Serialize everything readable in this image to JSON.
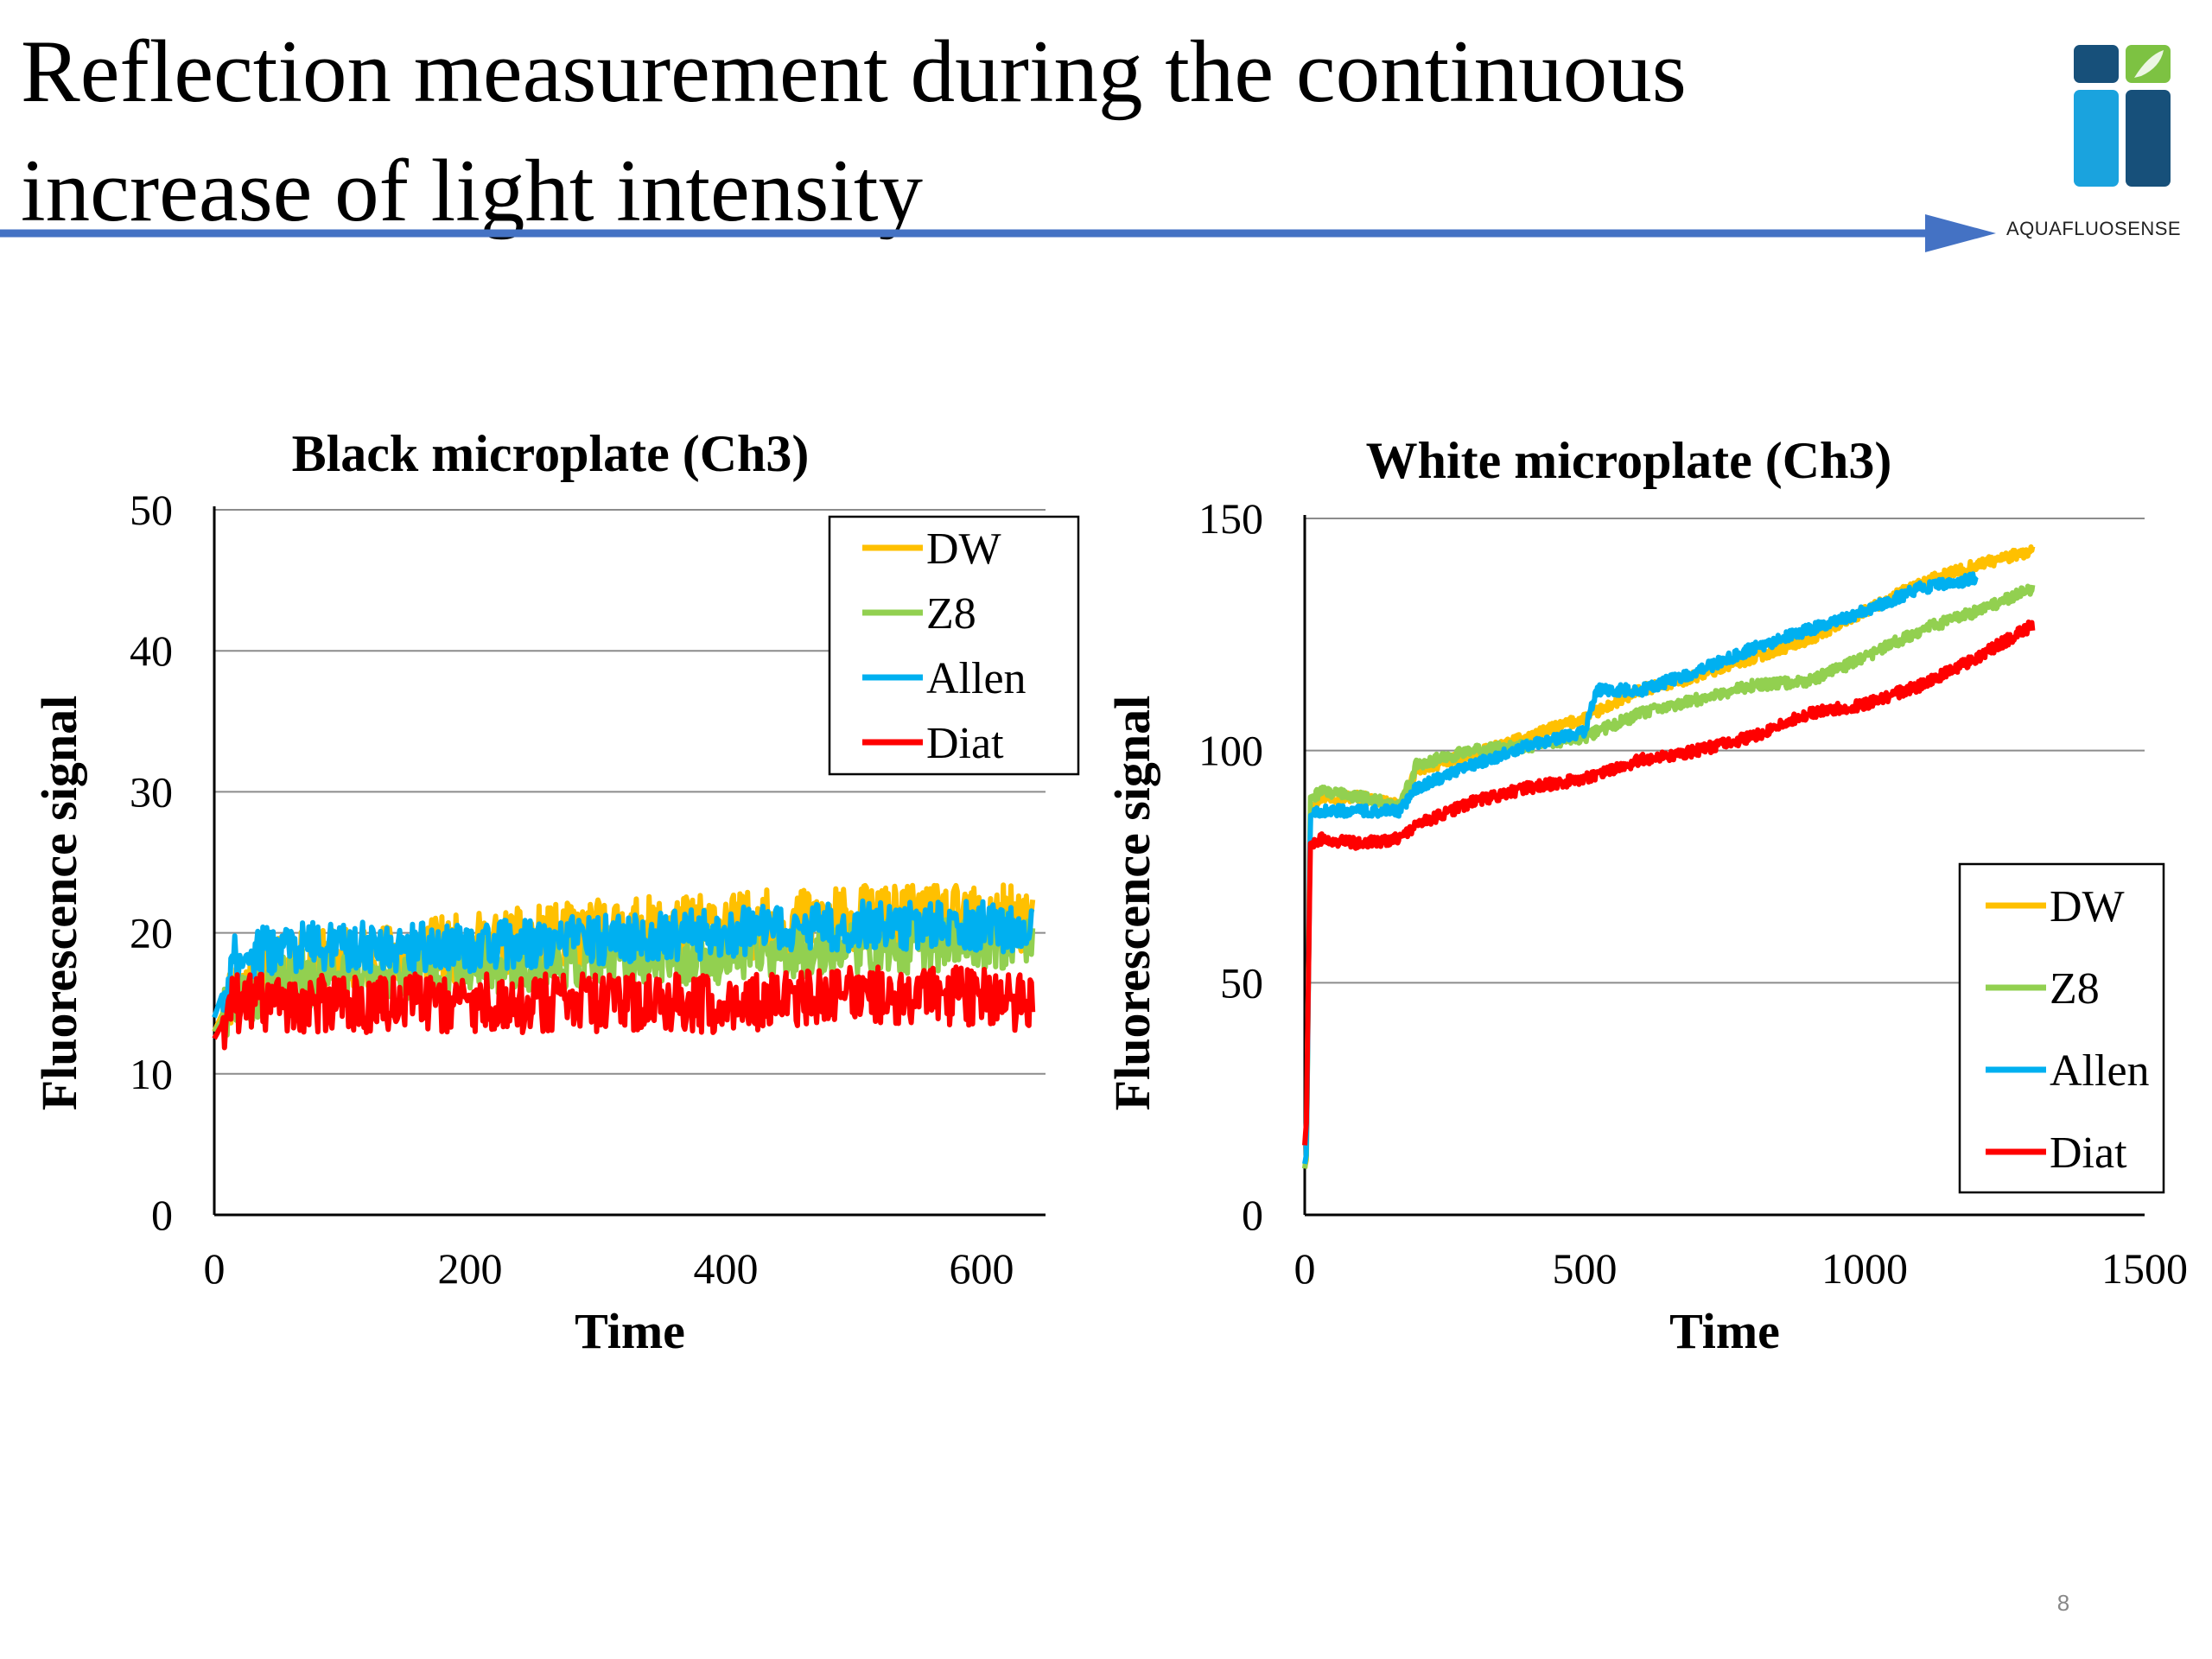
{
  "slide": {
    "title_lines": [
      "Reflection measurement during the continuous",
      "increase of light intensity"
    ],
    "logo_text": "AQUAFLUOSENSE",
    "page_number": "8",
    "colors": {
      "arrow": "#4472C4",
      "logo_dark": "#17507A",
      "logo_light": "#1AA3DE",
      "logo_green": "#7DC242"
    }
  },
  "chart_data": [
    {
      "type": "line",
      "title": "Black microplate (Ch3)",
      "xlabel": "Time",
      "ylabel": "Fluorescence signal",
      "xlim": [
        0,
        650
      ],
      "ylim": [
        0,
        50
      ],
      "xticks": [
        0,
        200,
        400,
        600
      ],
      "yticks": [
        0,
        10,
        20,
        30,
        40,
        50
      ],
      "grid": true,
      "legend_position": "top-right",
      "series": [
        {
          "name": "DW",
          "color": "#FFC000",
          "noise": 1.5,
          "points": [
            [
              0,
              13
            ],
            [
              15,
              16
            ],
            [
              50,
              17.5
            ],
            [
              100,
              18
            ],
            [
              200,
              19
            ],
            [
              300,
              20
            ],
            [
              400,
              20.5
            ],
            [
              500,
              21
            ],
            [
              600,
              21
            ],
            [
              640,
              21
            ]
          ]
        },
        {
          "name": "Z8",
          "color": "#92D050",
          "noise": 1.3,
          "points": [
            [
              0,
              13
            ],
            [
              15,
              15
            ],
            [
              50,
              16.5
            ],
            [
              100,
              17
            ],
            [
              200,
              17.5
            ],
            [
              300,
              18
            ],
            [
              400,
              18.5
            ],
            [
              500,
              19
            ],
            [
              600,
              19.5
            ],
            [
              640,
              19.5
            ]
          ]
        },
        {
          "name": "Allen",
          "color": "#00B0F0",
          "noise": 1.1,
          "points": [
            [
              0,
              14
            ],
            [
              15,
              18
            ],
            [
              50,
              19
            ],
            [
              100,
              19
            ],
            [
              200,
              19
            ],
            [
              300,
              19.5
            ],
            [
              400,
              20
            ],
            [
              500,
              20.5
            ],
            [
              600,
              20.5
            ],
            [
              640,
              20
            ]
          ]
        },
        {
          "name": "Diat",
          "color": "#FF0000",
          "noise": 1.3,
          "points": [
            [
              0,
              12.5
            ],
            [
              15,
              15
            ],
            [
              50,
              15
            ],
            [
              100,
              15
            ],
            [
              200,
              15
            ],
            [
              300,
              15
            ],
            [
              400,
              15
            ],
            [
              500,
              15.5
            ],
            [
              600,
              15.5
            ],
            [
              640,
              15
            ]
          ]
        }
      ]
    },
    {
      "type": "line",
      "title": "White microplate (Ch3)",
      "xlabel": "Time",
      "ylabel": "Fluorescence signal",
      "xlim": [
        0,
        1500
      ],
      "ylim": [
        0,
        150
      ],
      "xticks": [
        0,
        500,
        1000,
        1500
      ],
      "yticks": [
        0,
        50,
        100,
        150
      ],
      "grid": true,
      "legend_position": "bottom-right",
      "series": [
        {
          "name": "DW",
          "color": "#FFC000",
          "noise": 1.0,
          "points": [
            [
              0,
              10
            ],
            [
              3,
              12
            ],
            [
              10,
              88
            ],
            [
              30,
              90
            ],
            [
              100,
              90
            ],
            [
              170,
              88
            ],
            [
              200,
              96
            ],
            [
              300,
              99
            ],
            [
              400,
              103
            ],
            [
              500,
              107
            ],
            [
              600,
              113
            ],
            [
              700,
              116
            ],
            [
              800,
              120
            ],
            [
              900,
              124
            ],
            [
              1000,
              130
            ],
            [
              1100,
              136
            ],
            [
              1200,
              140
            ],
            [
              1300,
              143
            ]
          ]
        },
        {
          "name": "Z8",
          "color": "#92D050",
          "noise": 1.0,
          "points": [
            [
              0,
              10
            ],
            [
              3,
              13
            ],
            [
              10,
              90
            ],
            [
              30,
              91
            ],
            [
              100,
              90
            ],
            [
              170,
              88
            ],
            [
              200,
              97
            ],
            [
              300,
              100
            ],
            [
              400,
              101
            ],
            [
              500,
              103
            ],
            [
              600,
              108
            ],
            [
              700,
              111
            ],
            [
              800,
              114
            ],
            [
              900,
              115
            ],
            [
              1000,
              120
            ],
            [
              1100,
              126
            ],
            [
              1200,
              130
            ],
            [
              1300,
              135
            ]
          ]
        },
        {
          "name": "Allen",
          "color": "#00B0F0",
          "noise": 1.0,
          "points": [
            [
              0,
              11
            ],
            [
              3,
              13
            ],
            [
              10,
              86
            ],
            [
              30,
              87
            ],
            [
              100,
              87
            ],
            [
              170,
              87
            ],
            [
              200,
              92
            ],
            [
              300,
              97
            ],
            [
              400,
              101
            ],
            [
              500,
              104
            ],
            [
              520,
              113
            ],
            [
              600,
              113
            ],
            [
              700,
              117
            ],
            [
              800,
              122
            ],
            [
              900,
              126
            ],
            [
              1000,
              130
            ],
            [
              1100,
              135
            ],
            [
              1200,
              137
            ]
          ]
        },
        {
          "name": "Diat",
          "color": "#FF0000",
          "noise": 1.0,
          "points": [
            [
              0,
              15
            ],
            [
              3,
              20
            ],
            [
              10,
              80
            ],
            [
              30,
              81
            ],
            [
              100,
              80
            ],
            [
              170,
              81
            ],
            [
              200,
              84
            ],
            [
              300,
              89
            ],
            [
              400,
              92
            ],
            [
              500,
              94
            ],
            [
              600,
              98
            ],
            [
              700,
              100
            ],
            [
              800,
              103
            ],
            [
              900,
              108
            ],
            [
              1000,
              110
            ],
            [
              1100,
              114
            ],
            [
              1200,
              120
            ],
            [
              1300,
              127
            ]
          ]
        }
      ]
    }
  ]
}
